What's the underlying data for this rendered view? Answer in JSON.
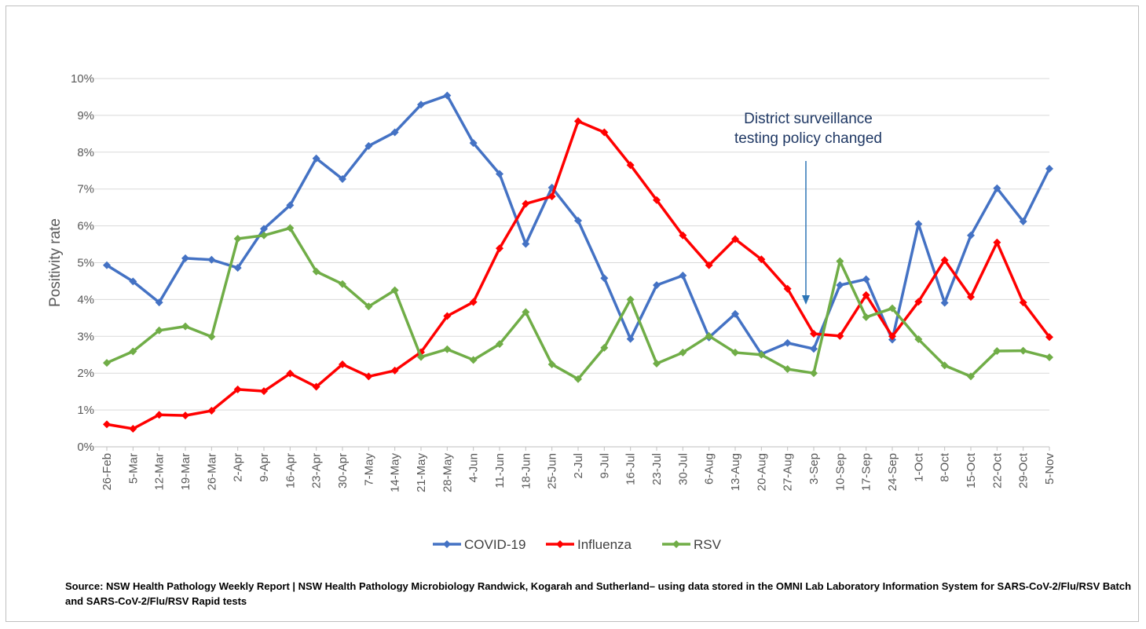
{
  "chart_data": {
    "type": "line",
    "ylabel": "Positivity rate",
    "ylim": [
      0,
      10
    ],
    "y_unit": "%",
    "grid": true,
    "legend_position": "bottom",
    "yticks": [
      "0%",
      "1%",
      "2%",
      "3%",
      "4%",
      "5%",
      "6%",
      "7%",
      "8%",
      "9%",
      "10%"
    ],
    "categories": [
      "26-Feb",
      "5-Mar",
      "12-Mar",
      "19-Mar",
      "26-Mar",
      "2-Apr",
      "9-Apr",
      "16-Apr",
      "23-Apr",
      "30-Apr",
      "7-May",
      "14-May",
      "21-May",
      "28-May",
      "4-Jun",
      "11-Jun",
      "18-Jun",
      "25-Jun",
      "2-Jul",
      "9-Jul",
      "16-Jul",
      "23-Jul",
      "30-Jul",
      "6-Aug",
      "13-Aug",
      "20-Aug",
      "27-Aug",
      "3-Sep",
      "10-Sep",
      "17-Sep",
      "24-Sep",
      "1-Oct",
      "8-Oct",
      "15-Oct",
      "22-Oct",
      "29-Oct",
      "5-Nov"
    ],
    "series": [
      {
        "name": "COVID-19",
        "color": "#4472c4",
        "values": [
          4.93,
          4.49,
          3.92,
          5.12,
          5.08,
          4.86,
          5.92,
          6.56,
          7.83,
          7.27,
          8.17,
          8.54,
          9.29,
          9.54,
          8.25,
          7.41,
          5.51,
          7.04,
          6.14,
          4.58,
          2.93,
          4.39,
          4.65,
          2.97,
          3.61,
          2.52,
          2.82,
          2.66,
          4.39,
          4.55,
          2.91,
          6.05,
          3.91,
          5.74,
          7.02,
          6.12,
          7.55
        ]
      },
      {
        "name": "Influenza",
        "color": "#ff0000",
        "values": [
          0.61,
          0.49,
          0.87,
          0.85,
          0.98,
          1.56,
          1.51,
          1.99,
          1.63,
          2.24,
          1.91,
          2.07,
          2.57,
          3.55,
          3.93,
          5.39,
          6.6,
          6.8,
          8.84,
          8.54,
          7.65,
          6.7,
          5.74,
          4.93,
          5.64,
          5.09,
          4.29,
          3.07,
          3.01,
          4.12,
          3.0,
          3.94,
          5.07,
          4.07,
          5.55,
          3.92,
          2.98
        ]
      },
      {
        "name": "RSV",
        "color": "#70ad47",
        "values": [
          2.28,
          2.59,
          3.16,
          3.27,
          2.99,
          5.65,
          5.74,
          5.94,
          4.76,
          4.42,
          3.81,
          4.25,
          2.44,
          2.65,
          2.36,
          2.79,
          3.66,
          2.24,
          1.84,
          2.69,
          4.0,
          2.26,
          2.56,
          3.01,
          2.56,
          2.5,
          2.11,
          2.0,
          5.04,
          3.52,
          3.76,
          2.92,
          2.21,
          1.91,
          2.6,
          2.61,
          2.43
        ]
      }
    ],
    "annotation": {
      "lines": [
        "District surveillance",
        "testing policy changed"
      ],
      "arrow_at": "3-Sep"
    }
  },
  "source_text": "Source: NSW Health Pathology Weekly Report | NSW Health Pathology Microbiology Randwick, Kogarah and Sutherland–  using data stored in the OMNI Lab Laboratory Information System for SARS-CoV-2/Flu/RSV Batch and SARS-CoV-2/Flu/RSV Rapid tests"
}
